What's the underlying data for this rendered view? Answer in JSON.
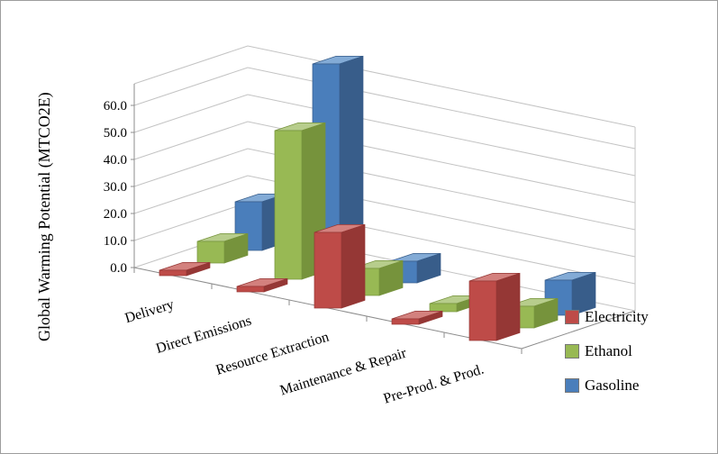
{
  "chart_data": {
    "type": "bar",
    "subtype": "3d-column",
    "title": "",
    "ylabel": "Global Warming Potential (MTCO2E)",
    "xlabel": "",
    "categories": [
      "Delivery",
      "Direct Emissions",
      "Resource Extraction",
      "Maintenance & Repair",
      "Pre-Prod. & Prod."
    ],
    "series": [
      {
        "name": "Electricity",
        "color": "#BE4B48",
        "side_color": "#953735",
        "top_color": "#D3817E",
        "values": [
          2,
          2,
          28,
          2,
          22
        ]
      },
      {
        "name": "Ethanol",
        "color": "#98B954",
        "side_color": "#76933C",
        "top_color": "#B7CD8C",
        "values": [
          8,
          55,
          10,
          3,
          8
        ]
      },
      {
        "name": "Gasoline",
        "color": "#4A7EBB",
        "side_color": "#385D8A",
        "top_color": "#83ABD6",
        "values": [
          18,
          75,
          8,
          0,
          13
        ]
      }
    ],
    "y_ticks": [
      "0.0",
      "10.0",
      "20.0",
      "30.0",
      "40.0",
      "50.0",
      "60.0"
    ],
    "ylim": [
      0,
      60
    ],
    "y_major_step": 10,
    "grid": true,
    "legend_position": "right"
  },
  "colors": {
    "gridline": "#C3C3C3",
    "axis": "#8C8C8C",
    "text": "#000000",
    "background": "#FFFFFF"
  }
}
